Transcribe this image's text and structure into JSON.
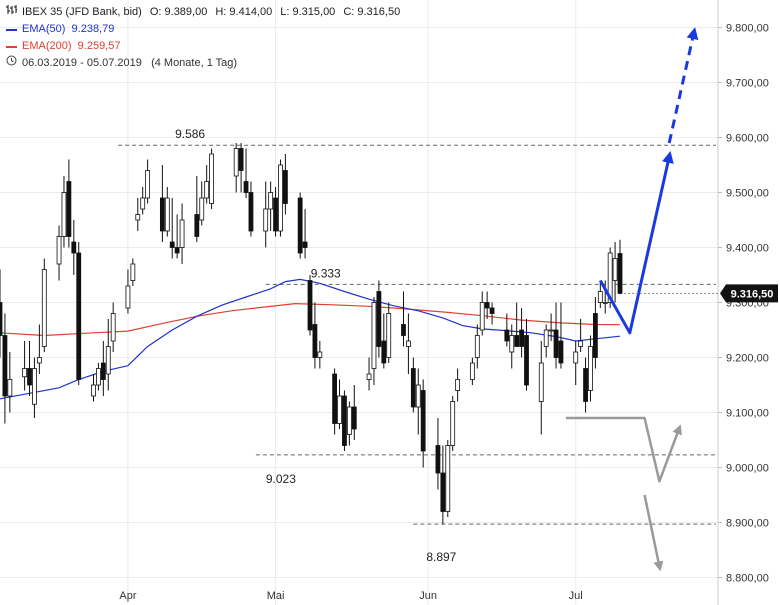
{
  "legend": {
    "instrument": "IBEX 35 (JFD Bank, bid)",
    "ohlc": [
      {
        "label": "O:",
        "value": "9.389,00"
      },
      {
        "label": "H:",
        "value": "9.414,00"
      },
      {
        "label": "L:",
        "value": "9.315,00"
      },
      {
        "label": "C:",
        "value": "9.316,50"
      }
    ],
    "ema50_label": "EMA(50)",
    "ema50_value": "9.238,79",
    "ema200_label": "EMA(200)",
    "ema200_value": "9.259,57",
    "period_range": "06.03.2019 - 05.07.2019",
    "period_detail": "(4 Monate, 1 Tag)",
    "icons": {
      "bars": "bars-icon",
      "clock": "clock-icon"
    }
  },
  "colors": {
    "ema50": "#2233cc",
    "ema200": "#e04030",
    "projection_up": "#1a3adf",
    "projection_down": "#9a9a9a",
    "current_price_tag": "#111111"
  },
  "chart_data": {
    "type": "candlestick",
    "y_axis": {
      "min": 8750,
      "max": 9850,
      "ticks": [
        9800,
        9700,
        9600,
        9500,
        9400,
        9300,
        9200,
        9100,
        9000,
        8900,
        8800
      ],
      "tick_labels": [
        "9.800,00",
        "9.700,00",
        "9.600,00",
        "9.500,00",
        "9.400,00",
        "9.300,00",
        "9.200,00",
        "9.100,00",
        "9.000,00",
        "8.900,00",
        "8.800,00"
      ]
    },
    "x_axis": {
      "start_date": "2019-03-06",
      "end_date": "2019-07-10",
      "labels": [
        {
          "date": "2019-04-01",
          "text": "Apr"
        },
        {
          "date": "2019-05-01",
          "text": "Mai"
        },
        {
          "date": "2019-06-01",
          "text": "Jun"
        },
        {
          "date": "2019-07-01",
          "text": "Jul"
        }
      ]
    },
    "grid": true,
    "current_price": {
      "value": 9316.5,
      "label": "9.316,50"
    },
    "levels": [
      {
        "value": 9586,
        "label": "9.586",
        "from": "2019-03-30",
        "to": "2019-07-10"
      },
      {
        "value": 9333,
        "label": "9.333",
        "from": "2019-04-29",
        "to": "2019-07-10"
      },
      {
        "value": 9023,
        "label": "9.023",
        "from": "2019-04-27",
        "to": "2019-07-10"
      },
      {
        "value": 8897,
        "label": "8.897",
        "from": "2019-05-29",
        "to": "2019-07-10"
      }
    ],
    "candles": [
      {
        "d": "2019-03-06",
        "o": 9300,
        "h": 9360,
        "l": 9200,
        "c": 9240
      },
      {
        "d": "2019-03-07",
        "o": 9240,
        "h": 9280,
        "l": 9080,
        "c": 9130
      },
      {
        "d": "2019-03-08",
        "o": 9130,
        "h": 9210,
        "l": 9100,
        "c": 9160
      },
      {
        "d": "2019-03-11",
        "o": 9165,
        "h": 9230,
        "l": 9140,
        "c": 9180
      },
      {
        "d": "2019-03-12",
        "o": 9180,
        "h": 9230,
        "l": 9130,
        "c": 9150
      },
      {
        "d": "2019-03-13",
        "o": 9115,
        "h": 9200,
        "l": 9090,
        "c": 9180
      },
      {
        "d": "2019-03-14",
        "o": 9190,
        "h": 9260,
        "l": 9170,
        "c": 9200
      },
      {
        "d": "2019-03-15",
        "o": 9220,
        "h": 9380,
        "l": 9210,
        "c": 9360
      },
      {
        "d": "2019-03-18",
        "o": 9370,
        "h": 9440,
        "l": 9340,
        "c": 9420
      },
      {
        "d": "2019-03-19",
        "o": 9420,
        "h": 9530,
        "l": 9400,
        "c": 9500
      },
      {
        "d": "2019-03-20",
        "o": 9520,
        "h": 9560,
        "l": 9400,
        "c": 9420
      },
      {
        "d": "2019-03-21",
        "o": 9410,
        "h": 9450,
        "l": 9350,
        "c": 9390
      },
      {
        "d": "2019-03-22",
        "o": 9390,
        "h": 9410,
        "l": 9150,
        "c": 9160
      },
      {
        "d": "2019-03-25",
        "o": 9130,
        "h": 9170,
        "l": 9120,
        "c": 9150
      },
      {
        "d": "2019-03-26",
        "o": 9150,
        "h": 9190,
        "l": 9140,
        "c": 9180
      },
      {
        "d": "2019-03-27",
        "o": 9190,
        "h": 9230,
        "l": 9130,
        "c": 9160
      },
      {
        "d": "2019-03-28",
        "o": 9170,
        "h": 9270,
        "l": 9140,
        "c": 9220
      },
      {
        "d": "2019-03-29",
        "o": 9230,
        "h": 9300,
        "l": 9210,
        "c": 9280
      },
      {
        "d": "2019-04-01",
        "o": 9290,
        "h": 9360,
        "l": 9280,
        "c": 9330
      },
      {
        "d": "2019-04-02",
        "o": 9340,
        "h": 9380,
        "l": 9330,
        "c": 9370
      },
      {
        "d": "2019-04-03",
        "o": 9450,
        "h": 9490,
        "l": 9430,
        "c": 9460
      },
      {
        "d": "2019-04-04",
        "o": 9470,
        "h": 9510,
        "l": 9460,
        "c": 9490
      },
      {
        "d": "2019-04-05",
        "o": 9490,
        "h": 9560,
        "l": 9480,
        "c": 9540
      },
      {
        "d": "2019-04-08",
        "o": 9490,
        "h": 9550,
        "l": 9410,
        "c": 9430
      },
      {
        "d": "2019-04-09",
        "o": 9430,
        "h": 9510,
        "l": 9420,
        "c": 9490
      },
      {
        "d": "2019-04-10",
        "o": 9410,
        "h": 9490,
        "l": 9380,
        "c": 9400
      },
      {
        "d": "2019-04-11",
        "o": 9400,
        "h": 9460,
        "l": 9380,
        "c": 9390
      },
      {
        "d": "2019-04-12",
        "o": 9400,
        "h": 9480,
        "l": 9370,
        "c": 9450
      },
      {
        "d": "2019-04-15",
        "o": 9460,
        "h": 9530,
        "l": 9410,
        "c": 9420
      },
      {
        "d": "2019-04-16",
        "o": 9450,
        "h": 9520,
        "l": 9440,
        "c": 9490
      },
      {
        "d": "2019-04-17",
        "o": 9490,
        "h": 9550,
        "l": 9480,
        "c": 9520
      },
      {
        "d": "2019-04-18",
        "o": 9480,
        "h": 9580,
        "l": 9470,
        "c": 9570
      },
      {
        "d": "2019-04-23",
        "o": 9530,
        "h": 9590,
        "l": 9500,
        "c": 9580
      },
      {
        "d": "2019-04-24",
        "o": 9580,
        "h": 9590,
        "l": 9500,
        "c": 9540
      },
      {
        "d": "2019-04-25",
        "o": 9520,
        "h": 9580,
        "l": 9490,
        "c": 9500
      },
      {
        "d": "2019-04-26",
        "o": 9500,
        "h": 9520,
        "l": 9420,
        "c": 9430
      },
      {
        "d": "2019-04-29",
        "o": 9430,
        "h": 9520,
        "l": 9400,
        "c": 9470
      },
      {
        "d": "2019-04-30",
        "o": 9470,
        "h": 9520,
        "l": 9430,
        "c": 9500
      },
      {
        "d": "2019-05-01",
        "o": 9490,
        "h": 9510,
        "l": 9420,
        "c": 9430
      },
      {
        "d": "2019-05-02",
        "o": 9430,
        "h": 9560,
        "l": 9420,
        "c": 9550
      },
      {
        "d": "2019-05-03",
        "o": 9540,
        "h": 9570,
        "l": 9460,
        "c": 9480
      },
      {
        "d": "2019-05-06",
        "o": 9490,
        "h": 9500,
        "l": 9380,
        "c": 9390
      },
      {
        "d": "2019-05-07",
        "o": 9410,
        "h": 9470,
        "l": 9380,
        "c": 9400
      },
      {
        "d": "2019-05-08",
        "o": 9340,
        "h": 9350,
        "l": 9240,
        "c": 9250
      },
      {
        "d": "2019-05-09",
        "o": 9260,
        "h": 9300,
        "l": 9180,
        "c": 9200
      },
      {
        "d": "2019-05-10",
        "o": 9200,
        "h": 9230,
        "l": 9180,
        "c": 9210
      },
      {
        "d": "2019-05-13",
        "o": 9170,
        "h": 9180,
        "l": 9060,
        "c": 9080
      },
      {
        "d": "2019-05-14",
        "o": 9080,
        "h": 9160,
        "l": 9070,
        "c": 9130
      },
      {
        "d": "2019-05-15",
        "o": 9130,
        "h": 9140,
        "l": 9030,
        "c": 9040
      },
      {
        "d": "2019-05-16",
        "o": 9060,
        "h": 9120,
        "l": 9040,
        "c": 9110
      },
      {
        "d": "2019-05-17",
        "o": 9110,
        "h": 9150,
        "l": 9050,
        "c": 9070
      },
      {
        "d": "2019-05-20",
        "o": 9160,
        "h": 9200,
        "l": 9140,
        "c": 9170
      },
      {
        "d": "2019-05-21",
        "o": 9180,
        "h": 9310,
        "l": 9150,
        "c": 9300
      },
      {
        "d": "2019-05-22",
        "o": 9320,
        "h": 9340,
        "l": 9200,
        "c": 9220
      },
      {
        "d": "2019-05-23",
        "o": 9230,
        "h": 9280,
        "l": 9180,
        "c": 9190
      },
      {
        "d": "2019-05-24",
        "o": 9200,
        "h": 9300,
        "l": 9190,
        "c": 9280
      },
      {
        "d": "2019-05-27",
        "o": 9260,
        "h": 9320,
        "l": 9220,
        "c": 9240
      },
      {
        "d": "2019-05-28",
        "o": 9220,
        "h": 9280,
        "l": 9170,
        "c": 9230
      },
      {
        "d": "2019-05-29",
        "o": 9180,
        "h": 9200,
        "l": 9100,
        "c": 9110
      },
      {
        "d": "2019-05-30",
        "o": 9110,
        "h": 9180,
        "l": 9060,
        "c": 9150
      },
      {
        "d": "2019-05-31",
        "o": 9140,
        "h": 9160,
        "l": 9000,
        "c": 9030
      },
      {
        "d": "2019-06-03",
        "o": 9040,
        "h": 9090,
        "l": 8960,
        "c": 8990
      },
      {
        "d": "2019-06-04",
        "o": 8990,
        "h": 9040,
        "l": 8897,
        "c": 8920
      },
      {
        "d": "2019-06-05",
        "o": 8920,
        "h": 9050,
        "l": 8910,
        "c": 9040
      },
      {
        "d": "2019-06-06",
        "o": 9040,
        "h": 9130,
        "l": 9030,
        "c": 9120
      },
      {
        "d": "2019-06-07",
        "o": 9140,
        "h": 9180,
        "l": 9120,
        "c": 9160
      },
      {
        "d": "2019-06-10",
        "o": 9160,
        "h": 9200,
        "l": 9150,
        "c": 9190
      },
      {
        "d": "2019-06-11",
        "o": 9200,
        "h": 9260,
        "l": 9180,
        "c": 9240
      },
      {
        "d": "2019-06-12",
        "o": 9250,
        "h": 9320,
        "l": 9240,
        "c": 9300
      },
      {
        "d": "2019-06-13",
        "o": 9300,
        "h": 9320,
        "l": 9270,
        "c": 9290
      },
      {
        "d": "2019-06-14",
        "o": 9290,
        "h": 9300,
        "l": 9260,
        "c": 9280
      },
      {
        "d": "2019-06-17",
        "o": 9250,
        "h": 9280,
        "l": 9220,
        "c": 9230
      },
      {
        "d": "2019-06-18",
        "o": 9210,
        "h": 9260,
        "l": 9180,
        "c": 9240
      },
      {
        "d": "2019-06-19",
        "o": 9240,
        "h": 9300,
        "l": 9220,
        "c": 9220
      },
      {
        "d": "2019-06-20",
        "o": 9250,
        "h": 9290,
        "l": 9200,
        "c": 9220
      },
      {
        "d": "2019-06-21",
        "o": 9240,
        "h": 9270,
        "l": 9140,
        "c": 9150
      },
      {
        "d": "2019-06-24",
        "o": 9120,
        "h": 9230,
        "l": 9060,
        "c": 9190
      },
      {
        "d": "2019-06-25",
        "o": 9220,
        "h": 9260,
        "l": 9200,
        "c": 9250
      },
      {
        "d": "2019-06-26",
        "o": 9250,
        "h": 9280,
        "l": 9230,
        "c": 9250
      },
      {
        "d": "2019-06-27",
        "o": 9250,
        "h": 9300,
        "l": 9180,
        "c": 9200
      },
      {
        "d": "2019-06-28",
        "o": 9230,
        "h": 9300,
        "l": 9180,
        "c": 9190
      },
      {
        "d": "2019-07-01",
        "o": 9190,
        "h": 9230,
        "l": 9150,
        "c": 9210
      },
      {
        "d": "2019-07-02",
        "o": 9220,
        "h": 9270,
        "l": 9210,
        "c": 9230
      },
      {
        "d": "2019-07-03",
        "o": 9180,
        "h": 9200,
        "l": 9100,
        "c": 9120
      },
      {
        "d": "2019-07-04",
        "o": 9140,
        "h": 9240,
        "l": 9120,
        "c": 9220
      },
      {
        "d": "2019-07-05",
        "o": 9280,
        "h": 9310,
        "l": 9180,
        "c": 9200
      },
      {
        "d": "2019-07-06",
        "o": 9300,
        "h": 9340,
        "l": 9290,
        "c": 9320
      },
      {
        "d": "2019-07-07",
        "o": 9300,
        "h": 9340,
        "l": 9280,
        "c": 9300
      },
      {
        "d": "2019-07-08",
        "o": 9300,
        "h": 9400,
        "l": 9290,
        "c": 9390
      },
      {
        "d": "2019-07-09",
        "o": 9340,
        "h": 9410,
        "l": 9300,
        "c": 9380
      },
      {
        "d": "2019-07-10",
        "o": 9389,
        "h": 9414,
        "l": 9315,
        "c": 9316.5
      }
    ],
    "ema50": [
      {
        "d": "2019-03-06",
        "v": 9125
      },
      {
        "d": "2019-03-12",
        "v": 9135
      },
      {
        "d": "2019-03-18",
        "v": 9145
      },
      {
        "d": "2019-03-22",
        "v": 9160
      },
      {
        "d": "2019-03-27",
        "v": 9175
      },
      {
        "d": "2019-04-01",
        "v": 9185
      },
      {
        "d": "2019-04-05",
        "v": 9220
      },
      {
        "d": "2019-04-10",
        "v": 9250
      },
      {
        "d": "2019-04-15",
        "v": 9275
      },
      {
        "d": "2019-04-20",
        "v": 9295
      },
      {
        "d": "2019-04-25",
        "v": 9310
      },
      {
        "d": "2019-04-30",
        "v": 9325
      },
      {
        "d": "2019-05-03",
        "v": 9338
      },
      {
        "d": "2019-05-06",
        "v": 9342
      },
      {
        "d": "2019-05-10",
        "v": 9335
      },
      {
        "d": "2019-05-15",
        "v": 9320
      },
      {
        "d": "2019-05-20",
        "v": 9306
      },
      {
        "d": "2019-05-25",
        "v": 9294
      },
      {
        "d": "2019-05-30",
        "v": 9285
      },
      {
        "d": "2019-06-04",
        "v": 9272
      },
      {
        "d": "2019-06-08",
        "v": 9258
      },
      {
        "d": "2019-06-12",
        "v": 9252
      },
      {
        "d": "2019-06-18",
        "v": 9248
      },
      {
        "d": "2019-06-22",
        "v": 9245
      },
      {
        "d": "2019-06-27",
        "v": 9238
      },
      {
        "d": "2019-07-01",
        "v": 9230
      },
      {
        "d": "2019-07-05",
        "v": 9234
      },
      {
        "d": "2019-07-10",
        "v": 9238.79
      }
    ],
    "ema200": [
      {
        "d": "2019-03-06",
        "v": 9245
      },
      {
        "d": "2019-03-15",
        "v": 9240
      },
      {
        "d": "2019-03-25",
        "v": 9245
      },
      {
        "d": "2019-04-01",
        "v": 9248
      },
      {
        "d": "2019-04-08",
        "v": 9262
      },
      {
        "d": "2019-04-15",
        "v": 9275
      },
      {
        "d": "2019-04-22",
        "v": 9285
      },
      {
        "d": "2019-04-29",
        "v": 9292
      },
      {
        "d": "2019-05-05",
        "v": 9298
      },
      {
        "d": "2019-05-12",
        "v": 9296
      },
      {
        "d": "2019-05-20",
        "v": 9293
      },
      {
        "d": "2019-05-28",
        "v": 9288
      },
      {
        "d": "2019-06-05",
        "v": 9282
      },
      {
        "d": "2019-06-12",
        "v": 9276
      },
      {
        "d": "2019-06-20",
        "v": 9268
      },
      {
        "d": "2019-06-28",
        "v": 9263
      },
      {
        "d": "2019-07-05",
        "v": 9260
      },
      {
        "d": "2019-07-10",
        "v": 9259.57
      }
    ],
    "projection_up": {
      "solid": [
        {
          "d": "2019-07-06",
          "v": 9340
        },
        {
          "d": "2019-07-12",
          "v": 9245
        },
        {
          "d": "2019-07-20",
          "v": 9565
        }
      ],
      "dashed": [
        {
          "d": "2019-07-20",
          "v": 9590
        },
        {
          "d": "2019-07-25",
          "v": 9790
        }
      ]
    },
    "projection_down": {
      "path1": [
        {
          "d": "2019-06-29",
          "v": 9090
        },
        {
          "d": "2019-07-15",
          "v": 9090
        },
        {
          "d": "2019-07-18",
          "v": 8975
        },
        {
          "d": "2019-07-22",
          "v": 9070
        }
      ],
      "path2": [
        {
          "d": "2019-07-15",
          "v": 8950
        },
        {
          "d": "2019-07-18",
          "v": 8820
        }
      ]
    }
  }
}
